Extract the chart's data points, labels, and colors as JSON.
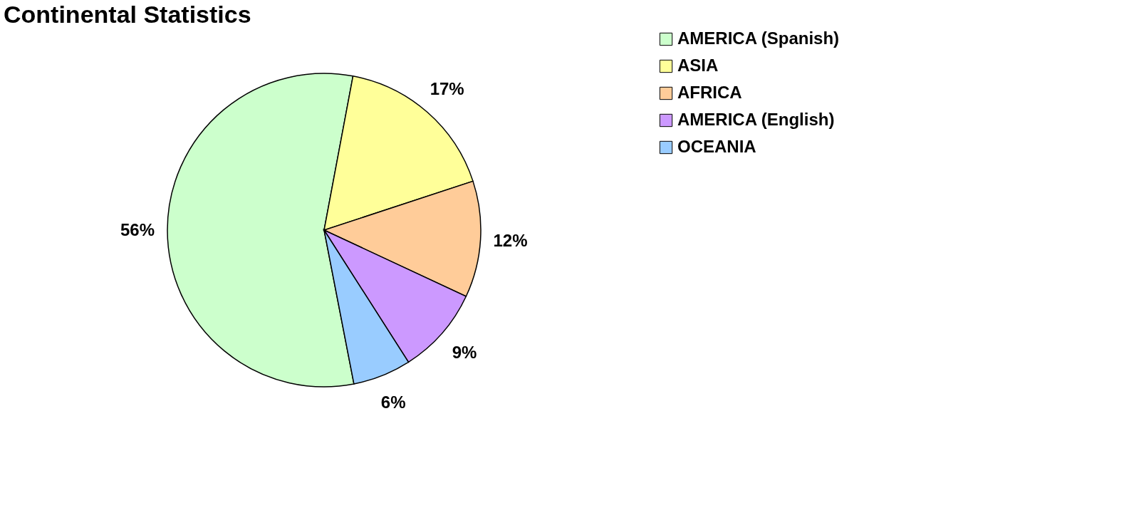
{
  "chart_data": {
    "type": "pie",
    "title": "Continental Statistics",
    "categories": [
      "AMERICA (Spanish)",
      "ASIA",
      "AFRICA",
      "AMERICA (English)",
      "OCEANIA"
    ],
    "values": [
      56,
      17,
      12,
      9,
      6
    ],
    "colors": [
      "#ccffcc",
      "#ffff99",
      "#ffcc99",
      "#cc99ff",
      "#99ccff"
    ],
    "value_labels": [
      "56%",
      "17%",
      "12%",
      "9%",
      "6%"
    ],
    "legend": "right"
  }
}
